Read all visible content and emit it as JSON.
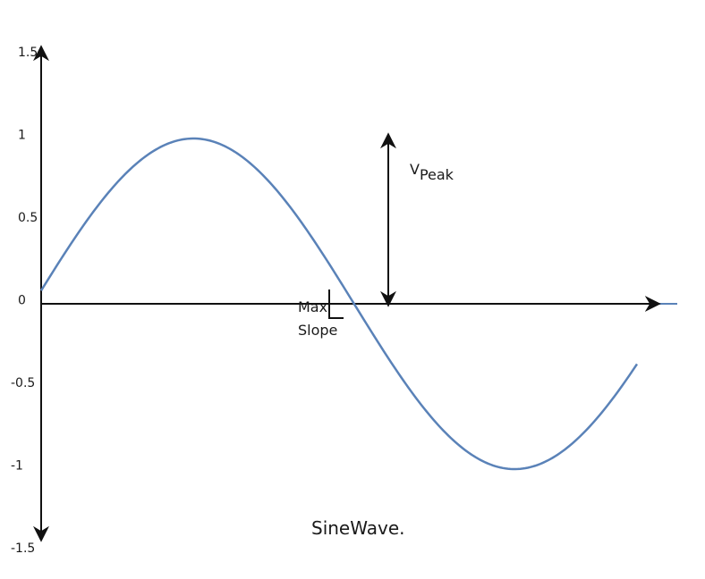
{
  "chart_data": {
    "type": "line",
    "title": "",
    "caption": "SineWave.",
    "xlabel": "",
    "ylabel": "",
    "ylim": [
      -1.5,
      1.5
    ],
    "y_ticks": [
      {
        "value": 1.5,
        "label": "1.5"
      },
      {
        "value": 1,
        "label": "1"
      },
      {
        "value": 0.5,
        "label": "0.5"
      },
      {
        "value": 0,
        "label": "0"
      },
      {
        "value": -0.5,
        "label": "-0.5"
      },
      {
        "value": -1,
        "label": "-1"
      },
      {
        "value": -1.5,
        "label": "-1.5"
      }
    ],
    "series": [
      {
        "color": "#5a82b8",
        "function": "sin",
        "phase_range": [
          0.08,
          5.91
        ]
      }
    ],
    "grid": false,
    "annotations": {
      "peak_label_main": "V",
      "peak_label_sub": "Peak",
      "slope_label_line1": "Max",
      "slope_label_line2": "Slope"
    },
    "colors": {
      "axis": "#111111",
      "curve": "#5a82b8"
    }
  }
}
